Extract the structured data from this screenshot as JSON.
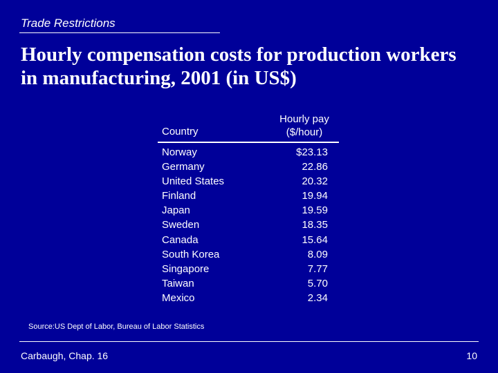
{
  "slide": {
    "section_title": "Trade Restrictions",
    "title": "Hourly compensation costs for production workers in manufacturing, 2001 (in US$)",
    "table": {
      "headers": {
        "country": "Country",
        "pay_line1": "Hourly pay",
        "pay_line2": "($/hour)"
      },
      "rows": [
        {
          "country": "Norway",
          "pay": "$23.13"
        },
        {
          "country": "Germany",
          "pay": "22.86"
        },
        {
          "country": "United States",
          "pay": "20.32"
        },
        {
          "country": "Finland",
          "pay": "19.94"
        },
        {
          "country": "Japan",
          "pay": "19.59"
        },
        {
          "country": "Sweden",
          "pay": "18.35"
        },
        {
          "country": "Canada",
          "pay": "15.64"
        },
        {
          "country": "South Korea",
          "pay": "8.09"
        },
        {
          "country": "Singapore",
          "pay": "7.77"
        },
        {
          "country": "Taiwan",
          "pay": "5.70"
        },
        {
          "country": "Mexico",
          "pay": "2.34"
        }
      ]
    },
    "source": "Source:US Dept of Labor, Bureau of Labor Statistics",
    "footer_left": "Carbaugh, Chap. 16",
    "page_number": "10"
  },
  "colors": {
    "background": "#000099",
    "text": "#ffffff"
  }
}
